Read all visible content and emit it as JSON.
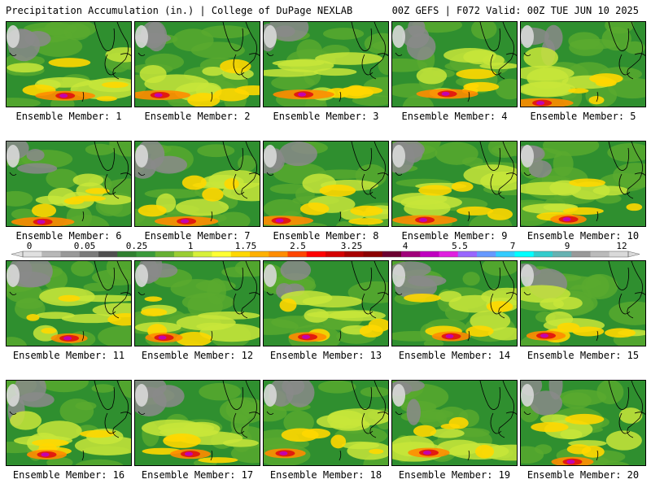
{
  "header": {
    "left_title": "Precipitation Accumulation (in.) | College of DuPage NEXLAB",
    "right_title": "00Z GEFS | F072 Valid: 00Z TUE JUN 10 2025"
  },
  "colorbar": {
    "tick_labels": [
      "0",
      "0.05",
      "0.25",
      "1",
      "1.75",
      "2.5",
      "3.25",
      "4",
      "5.5",
      "7",
      "9",
      "12"
    ],
    "colors": [
      "#e0e0e0",
      "#b8b8b8",
      "#999999",
      "#7a7a7a",
      "#4f4f4f",
      "#2f7f2f",
      "#3a9a3a",
      "#66b032",
      "#9acd32",
      "#d7f03a",
      "#ffff33",
      "#ffd700",
      "#ffb000",
      "#ff8c00",
      "#ff4500",
      "#ff0000",
      "#d40000",
      "#a80000",
      "#8b0000",
      "#6b0030",
      "#a0007a",
      "#c000c0",
      "#e020e0",
      "#9966ff",
      "#6699ff",
      "#33ccff",
      "#00ffff",
      "#33cccc",
      "#66b2b2",
      "#999999",
      "#bbbbbb",
      "#d9d9d9"
    ]
  },
  "panels": [
    {
      "label": "Ensemble Member: 1"
    },
    {
      "label": "Ensemble Member: 2"
    },
    {
      "label": "Ensemble Member: 3"
    },
    {
      "label": "Ensemble Member: 4"
    },
    {
      "label": "Ensemble Member: 5"
    },
    {
      "label": "Ensemble Member: 6"
    },
    {
      "label": "Ensemble Member: 7"
    },
    {
      "label": "Ensemble Member: 8"
    },
    {
      "label": "Ensemble Member: 9"
    },
    {
      "label": "Ensemble Member: 10"
    },
    {
      "label": "Ensemble Member: 11"
    },
    {
      "label": "Ensemble Member: 12"
    },
    {
      "label": "Ensemble Member: 13"
    },
    {
      "label": "Ensemble Member: 14"
    },
    {
      "label": "Ensemble Member: 15"
    },
    {
      "label": "Ensemble Member: 16"
    },
    {
      "label": "Ensemble Member: 17"
    },
    {
      "label": "Ensemble Member: 18"
    },
    {
      "label": "Ensemble Member: 19"
    },
    {
      "label": "Ensemble Member: 20"
    }
  ]
}
